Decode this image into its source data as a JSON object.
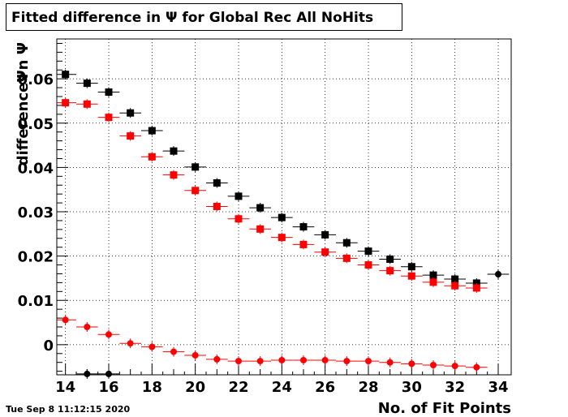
{
  "title": "Fitted difference in  Ψ  for Global Rec All NoHits",
  "datestamp": "Tue Sep  8 11:12:15 2020",
  "chart_data": {
    "type": "scatter",
    "title": "Fitted difference in  Ψ  for Global Rec All NoHits",
    "xlabel": "No. of Fit Points",
    "ylabel": "differenceΨn Ψ",
    "xlim": [
      13.6,
      34.6
    ],
    "ylim": [
      -0.0068,
      0.069
    ],
    "x_ticks": [
      14,
      16,
      18,
      20,
      22,
      24,
      26,
      28,
      30,
      32,
      34
    ],
    "y_ticks": [
      0,
      0.01,
      0.02,
      0.03,
      0.04,
      0.05,
      0.06
    ],
    "y_tick_labels": [
      "0",
      "0.01",
      "0.02",
      "0.03",
      "0.04",
      "0.05",
      "0.06"
    ],
    "x_tick_labels": [
      "14",
      "16",
      "18",
      "20",
      "22",
      "24",
      "26",
      "28",
      "30",
      "32",
      "34"
    ],
    "grid": true,
    "series": [
      {
        "marker": "square",
        "color": "#000000",
        "points": [
          {
            "x": 14,
            "y": 0.061
          },
          {
            "x": 15,
            "y": 0.059
          },
          {
            "x": 16,
            "y": 0.057
          },
          {
            "x": 17,
            "y": 0.0523
          },
          {
            "x": 18,
            "y": 0.0483
          },
          {
            "x": 19,
            "y": 0.0437
          },
          {
            "x": 20,
            "y": 0.0401
          },
          {
            "x": 21,
            "y": 0.0365
          },
          {
            "x": 22,
            "y": 0.0335
          },
          {
            "x": 23,
            "y": 0.0309
          },
          {
            "x": 24,
            "y": 0.0287
          },
          {
            "x": 25,
            "y": 0.0266
          },
          {
            "x": 26,
            "y": 0.0248
          },
          {
            "x": 27,
            "y": 0.023
          },
          {
            "x": 28,
            "y": 0.0211
          },
          {
            "x": 29,
            "y": 0.0193
          },
          {
            "x": 30,
            "y": 0.0176
          },
          {
            "x": 31,
            "y": 0.0157
          },
          {
            "x": 32,
            "y": 0.0148
          },
          {
            "x": 33,
            "y": 0.0139
          }
        ]
      },
      {
        "marker": "square",
        "color": "#ff0000",
        "points": [
          {
            "x": 14,
            "y": 0.0546
          },
          {
            "x": 15,
            "y": 0.0543
          },
          {
            "x": 16,
            "y": 0.0513
          },
          {
            "x": 17,
            "y": 0.0471
          },
          {
            "x": 18,
            "y": 0.0424
          },
          {
            "x": 19,
            "y": 0.0383
          },
          {
            "x": 20,
            "y": 0.0348
          },
          {
            "x": 21,
            "y": 0.0312
          },
          {
            "x": 22,
            "y": 0.0284
          },
          {
            "x": 23,
            "y": 0.0261
          },
          {
            "x": 24,
            "y": 0.0242
          },
          {
            "x": 25,
            "y": 0.0226
          },
          {
            "x": 26,
            "y": 0.0209
          },
          {
            "x": 27,
            "y": 0.0195
          },
          {
            "x": 28,
            "y": 0.018
          },
          {
            "x": 29,
            "y": 0.0167
          },
          {
            "x": 30,
            "y": 0.0155
          },
          {
            "x": 31,
            "y": 0.0141
          },
          {
            "x": 32,
            "y": 0.0133
          },
          {
            "x": 33,
            "y": 0.0128
          }
        ]
      },
      {
        "marker": "circle",
        "color": "#ff0000",
        "points": [
          {
            "x": 14,
            "y": 0.0056
          },
          {
            "x": 15,
            "y": 0.004
          },
          {
            "x": 16,
            "y": 0.0023
          },
          {
            "x": 17,
            "y": 0.0003
          },
          {
            "x": 18,
            "y": -0.0005
          },
          {
            "x": 19,
            "y": -0.0016
          },
          {
            "x": 20,
            "y": -0.0024
          },
          {
            "x": 21,
            "y": -0.0033
          },
          {
            "x": 22,
            "y": -0.0037
          },
          {
            "x": 23,
            "y": -0.0037
          },
          {
            "x": 24,
            "y": -0.0035
          },
          {
            "x": 25,
            "y": -0.0035
          },
          {
            "x": 26,
            "y": -0.0035
          },
          {
            "x": 27,
            "y": -0.0037
          },
          {
            "x": 28,
            "y": -0.0037
          },
          {
            "x": 29,
            "y": -0.004
          },
          {
            "x": 30,
            "y": -0.0043
          },
          {
            "x": 31,
            "y": -0.0046
          },
          {
            "x": 32,
            "y": -0.0048
          },
          {
            "x": 33,
            "y": -0.0051
          }
        ]
      },
      {
        "marker": "circle",
        "color": "#000000",
        "points": [
          {
            "x": 15,
            "y": -0.0066
          },
          {
            "x": 16,
            "y": -0.0066
          },
          {
            "x": 34,
            "y": 0.0159
          }
        ]
      }
    ]
  }
}
